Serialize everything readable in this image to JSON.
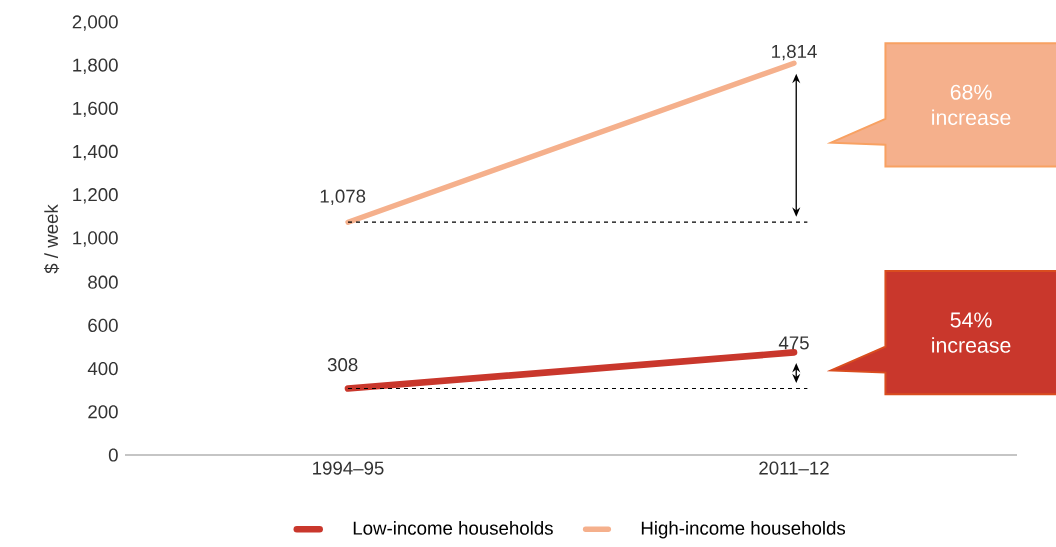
{
  "chart_data": {
    "type": "line",
    "ylabel": "$ / week",
    "categories": [
      "1994–95",
      "2011–12"
    ],
    "series": [
      {
        "name": "Low-income households",
        "color": "#c9372c",
        "values": [
          308,
          475
        ],
        "value_labels": [
          "308",
          "475"
        ]
      },
      {
        "name": "High-income households",
        "color": "#f5b08c",
        "values": [
          1078,
          1814
        ],
        "value_labels": [
          "1,078",
          "1,814"
        ]
      }
    ],
    "ylim": [
      0,
      2000
    ],
    "yticks": [
      0,
      200,
      400,
      600,
      800,
      {
        "value": 1000,
        "label": "1,000"
      },
      {
        "value": 1200,
        "label": "1,200"
      },
      {
        "value": 1400,
        "label": "1,400"
      },
      {
        "value": 1600,
        "label": "1,600"
      },
      {
        "value": 1800,
        "label": "1,800"
      },
      {
        "value": 2000,
        "label": "2,000"
      }
    ],
    "ref_lines": [
      {
        "axis": "y",
        "value": 308,
        "line_style": "dashed",
        "color": "#000000"
      },
      {
        "axis": "y",
        "value": 1078,
        "line_style": "dashed",
        "color": "#000000"
      }
    ],
    "annotations": [
      "54% increase",
      "68% increase"
    ],
    "legend": "bottom",
    "grid": false,
    "line_style": "solid"
  }
}
